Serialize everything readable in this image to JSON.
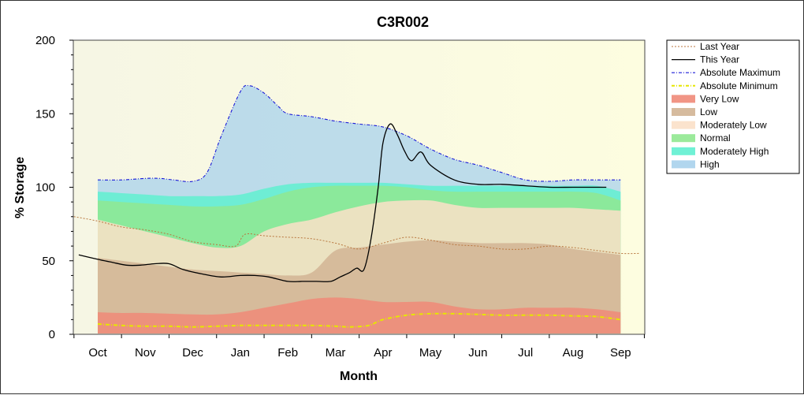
{
  "chart_data": {
    "type": "area",
    "title": "C3R002",
    "xlabel": "Month",
    "ylabel": "% Storage",
    "ylim": [
      0,
      200
    ],
    "yticks": [
      "0",
      "50",
      "100",
      "150",
      "200"
    ],
    "categories": [
      "Oct",
      "Nov",
      "Dec",
      "Jan",
      "Feb",
      "Mar",
      "Apr",
      "May",
      "Jun",
      "Jul",
      "Aug",
      "Sep"
    ],
    "grid": false,
    "legend_position": "top-right",
    "legend": [
      {
        "label": "Last Year",
        "color": "#b8763e",
        "kind": "line-dotted"
      },
      {
        "label": "This Year",
        "color": "#000000",
        "kind": "line"
      },
      {
        "label": "Absolute Maximum",
        "color": "#1a1ad8",
        "kind": "line-dashdot"
      },
      {
        "label": "Absolute Minimum",
        "color": "#e6e600",
        "kind": "line-dashdot"
      },
      {
        "label": "Very Low",
        "color": "#f08a78",
        "kind": "band"
      },
      {
        "label": "Low",
        "color": "#d2b494",
        "kind": "band"
      },
      {
        "label": "Moderately Low",
        "color": "#fbe0c8",
        "kind": "band"
      },
      {
        "label": "Normal",
        "color": "#90e890",
        "kind": "band"
      },
      {
        "label": "Moderately High",
        "color": "#60f0d0",
        "kind": "band"
      },
      {
        "label": "High",
        "color": "#a8d2ec",
        "kind": "band"
      }
    ],
    "series": [
      {
        "name": "Absolute Minimum",
        "x": [
          0,
          0.5,
          1,
          1.5,
          2,
          2.5,
          3,
          3.5,
          4,
          4.5,
          5,
          5.3,
          5.7,
          6,
          6.5,
          7,
          7.5,
          8,
          8.5,
          9,
          9.5,
          10,
          10.5,
          11
        ],
        "values": [
          7,
          6,
          5.5,
          5.5,
          5,
          5.5,
          6,
          6,
          6,
          6,
          5.5,
          5,
          6,
          10,
          13,
          14,
          14,
          13.5,
          13,
          13,
          13,
          12.5,
          12,
          10
        ]
      },
      {
        "name": "Very Low",
        "x": [
          0,
          0.5,
          1,
          1.5,
          2,
          2.5,
          3,
          3.5,
          4,
          4.5,
          5,
          5.5,
          6,
          6.5,
          7,
          7.5,
          8,
          8.5,
          9,
          9.5,
          10,
          10.5,
          11
        ],
        "values": [
          15,
          14.5,
          14.5,
          14,
          13.5,
          13.5,
          15,
          18,
          21,
          24,
          25,
          24,
          22,
          22,
          22,
          19,
          17,
          17,
          18,
          18,
          18,
          17,
          15
        ]
      },
      {
        "name": "Low",
        "x": [
          0,
          0.5,
          1,
          1.5,
          2,
          2.5,
          3,
          3.5,
          4,
          4.5,
          5,
          5.5,
          6,
          6.5,
          7,
          7.5,
          8,
          8.5,
          9,
          9.5,
          10,
          10.5,
          11
        ],
        "values": [
          52,
          50,
          48,
          46,
          44,
          43,
          42,
          41,
          40,
          42,
          57,
          59,
          61,
          63,
          64,
          63,
          62,
          62,
          62,
          61,
          58,
          56,
          54
        ]
      },
      {
        "name": "Moderately Low",
        "x": [
          0,
          0.5,
          1,
          1.5,
          2,
          2.5,
          3,
          3.5,
          4,
          4.5,
          5,
          5.5,
          6,
          6.5,
          7,
          7.5,
          8,
          8.5,
          9,
          9.5,
          10,
          10.5,
          11
        ],
        "values": [
          78,
          74,
          70,
          66,
          62,
          59,
          60,
          70,
          75,
          78,
          83,
          87,
          90,
          91,
          91,
          88,
          86,
          86,
          86,
          86,
          86,
          85,
          84
        ]
      },
      {
        "name": "Normal",
        "x": [
          0,
          0.5,
          1,
          1.5,
          2,
          2.5,
          3,
          3.5,
          4,
          4.5,
          5,
          5.5,
          6,
          6.5,
          7,
          7.5,
          8,
          8.5,
          9,
          9.5,
          10,
          10.5,
          11
        ],
        "values": [
          91,
          90,
          89,
          88,
          87,
          87,
          88,
          92,
          97,
          100,
          101,
          101,
          101,
          100,
          98,
          97,
          97,
          97,
          97,
          97,
          97,
          96,
          91
        ]
      },
      {
        "name": "Moderately High",
        "x": [
          0,
          0.5,
          1,
          1.5,
          2,
          2.5,
          3,
          3.5,
          4,
          4.5,
          5,
          5.5,
          6,
          6.5,
          7,
          7.5,
          8,
          8.5,
          9,
          9.5,
          10,
          10.5,
          11
        ],
        "values": [
          97,
          96,
          95,
          94,
          94,
          94,
          95,
          99,
          102,
          103,
          103,
          103,
          103,
          102,
          101,
          101,
          101,
          101,
          101,
          101,
          101,
          101,
          97
        ]
      },
      {
        "name": "Absolute Maximum",
        "x": [
          0,
          0.5,
          1,
          1.3,
          1.6,
          2,
          2.3,
          2.6,
          3,
          3.2,
          3.5,
          3.8,
          4,
          4.5,
          5,
          5.5,
          6,
          6.5,
          7,
          7.5,
          8,
          8.5,
          9,
          9.5,
          10,
          10.5,
          11
        ],
        "values": [
          105,
          105,
          106,
          106,
          105,
          104,
          110,
          135,
          165,
          169,
          164,
          155,
          150,
          148,
          145,
          143,
          141,
          135,
          126,
          119,
          115,
          110,
          105,
          104,
          105,
          105,
          105
        ]
      },
      {
        "name": "Last Year",
        "x": [
          -0.5,
          0,
          0.5,
          1,
          1.5,
          2,
          2.5,
          2.9,
          3.1,
          3.5,
          4,
          4.5,
          5,
          5.5,
          6,
          6.5,
          7,
          7.5,
          8,
          8.5,
          9,
          9.5,
          10,
          10.5,
          11,
          11.4
        ],
        "values": [
          80,
          77,
          73,
          71,
          68,
          63,
          61,
          60,
          68,
          67,
          66,
          65,
          62,
          58,
          62,
          66,
          64,
          61,
          60,
          58,
          58,
          60,
          59,
          57,
          55,
          55
        ]
      },
      {
        "name": "This Year",
        "x": [
          -0.4,
          0,
          0.3,
          0.6,
          0.9,
          1.2,
          1.5,
          1.8,
          2.2,
          2.6,
          3,
          3.3,
          3.6,
          4,
          4.3,
          4.6,
          4.9,
          5.1,
          5.3,
          5.45,
          5.6,
          5.75,
          5.9,
          6.0,
          6.15,
          6.3,
          6.45,
          6.6,
          6.8,
          7,
          7.5,
          8,
          8.5,
          9,
          9.5,
          10,
          10.5,
          10.7
        ],
        "values": [
          54,
          51,
          49,
          47,
          47,
          48,
          48,
          44,
          41,
          39,
          40,
          40,
          39,
          36,
          36,
          36,
          36,
          39,
          42,
          45,
          44,
          65,
          100,
          130,
          143,
          136,
          125,
          118,
          124,
          115,
          105,
          102,
          102,
          101,
          100,
          100,
          100,
          100
        ]
      }
    ]
  }
}
